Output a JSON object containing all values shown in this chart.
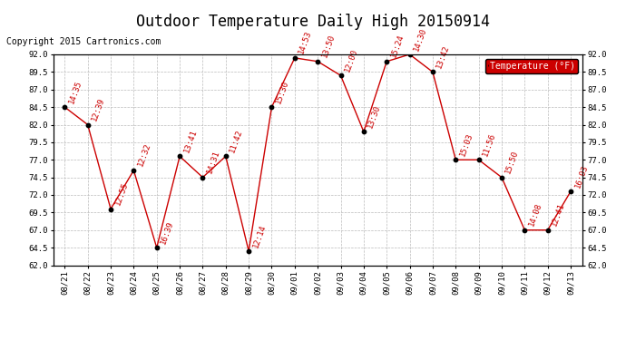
{
  "title": "Outdoor Temperature Daily High 20150914",
  "copyright": "Copyright 2015 Cartronics.com",
  "legend_label": "Temperature (°F)",
  "dates": [
    "08/21",
    "08/22",
    "08/23",
    "08/24",
    "08/25",
    "08/26",
    "08/27",
    "08/28",
    "08/29",
    "08/30",
    "09/01",
    "09/02",
    "09/03",
    "09/04",
    "09/05",
    "09/06",
    "09/07",
    "09/08",
    "09/09",
    "09/10",
    "09/11",
    "09/12",
    "09/13"
  ],
  "temperatures": [
    84.5,
    82.0,
    70.0,
    75.5,
    64.5,
    77.5,
    74.5,
    77.5,
    64.0,
    84.5,
    91.5,
    91.0,
    89.0,
    81.0,
    91.0,
    92.0,
    89.5,
    77.0,
    77.0,
    74.5,
    67.0,
    67.0,
    72.5
  ],
  "time_labels": [
    "14:35",
    "12:39",
    "12:55",
    "12:32",
    "16:39",
    "13:41",
    "14:31",
    "11:42",
    "12:14",
    "15:30",
    "14:53",
    "13:50",
    "12:00",
    "13:30",
    "15:24",
    "14:30",
    "13:42",
    "15:03",
    "11:56",
    "15:50",
    "14:08",
    "12:41",
    "16:03"
  ],
  "ylim_min": 62.0,
  "ylim_max": 92.0,
  "yticks": [
    62.0,
    64.5,
    67.0,
    69.5,
    72.0,
    74.5,
    77.0,
    79.5,
    82.0,
    84.5,
    87.0,
    89.5,
    92.0
  ],
  "line_color": "#cc0000",
  "marker_color": "#000000",
  "grid_color": "#bbbbbb",
  "bg_color": "#ffffff",
  "legend_bg": "#cc0000",
  "legend_text_color": "#ffffff",
  "title_fontsize": 12,
  "copyright_fontsize": 7,
  "label_fontsize": 6.5
}
